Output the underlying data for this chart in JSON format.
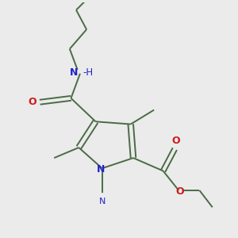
{
  "bg_color": "#ebebeb",
  "bond_color": "#4a6b45",
  "n_color": "#2121cc",
  "o_color": "#cc1a1a",
  "line_width": 1.4,
  "font_size_atom": 8.5,
  "figsize": [
    3.0,
    3.0
  ],
  "dpi": 100,
  "xlim": [
    1.0,
    9.5
  ],
  "ylim": [
    1.5,
    10.5
  ]
}
